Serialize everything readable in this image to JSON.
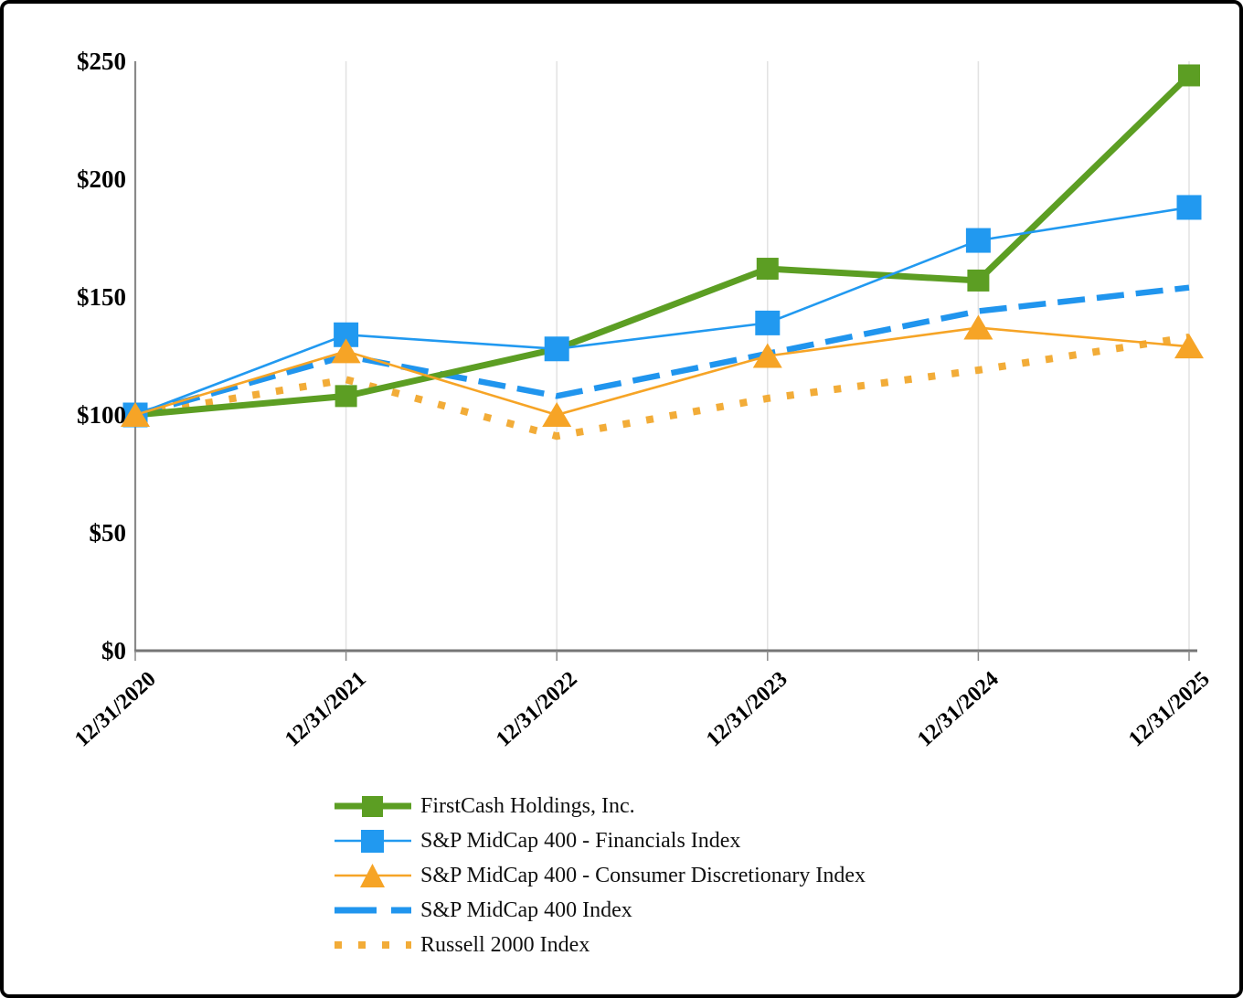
{
  "chart_data": {
    "type": "line",
    "title": "",
    "xlabel": "",
    "ylabel": "",
    "ylim": [
      0,
      250
    ],
    "grid": "vertical-only",
    "legend_position": "bottom-left",
    "x_labels": [
      "12/31/2020",
      "12/31/2021",
      "12/31/2022",
      "12/31/2023",
      "12/31/2024",
      "12/31/2025"
    ],
    "y_ticks": [
      "$0",
      "$50",
      "$100",
      "$150",
      "$200",
      "$250"
    ],
    "series": [
      {
        "name": "FirstCash Holdings, Inc.",
        "values": [
          100,
          108,
          128,
          162,
          157,
          244
        ],
        "color": "#5C9E23",
        "style": "solid",
        "weight": "thick",
        "marker": "square"
      },
      {
        "name": "S&P MidCap 400 - Financials Index",
        "values": [
          100,
          134,
          128,
          139,
          174,
          188
        ],
        "color": "#2199F0",
        "style": "solid",
        "weight": "thin",
        "marker": "square"
      },
      {
        "name": "S&P MidCap 400 - Consumer Discretionary Index",
        "values": [
          100,
          127,
          100,
          125,
          137,
          129
        ],
        "color": "#F6A426",
        "style": "solid",
        "weight": "thin",
        "marker": "triangle"
      },
      {
        "name": "S&P MidCap 400 Index",
        "values": [
          100,
          125,
          108,
          126,
          144,
          154
        ],
        "color": "#2095EE",
        "style": "dashed",
        "weight": "thick",
        "marker": "none"
      },
      {
        "name": "Russell 2000 Index",
        "values": [
          100,
          115,
          91,
          107,
          119,
          133
        ],
        "color": "#F2AC38",
        "style": "dotted",
        "weight": "thick",
        "marker": "none"
      }
    ]
  },
  "colors": {
    "axis": "#767676",
    "gridline": "#E2E2E2",
    "frame_border": "#000000",
    "background": "#FFFFFF"
  }
}
